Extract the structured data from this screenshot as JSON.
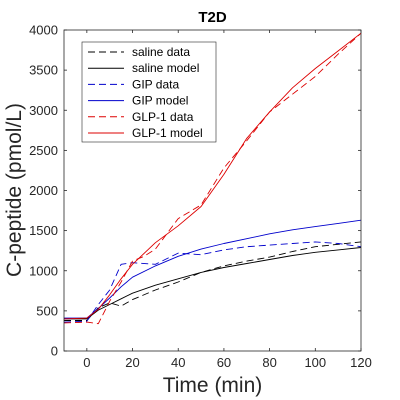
{
  "chart_data": {
    "type": "line",
    "title": "T2D",
    "xlabel": "Time (min)",
    "ylabel": "C-peptide (pmol/L)",
    "xlim": [
      -10,
      120
    ],
    "ylim": [
      0,
      4000
    ],
    "xticks": [
      0,
      20,
      40,
      60,
      80,
      100,
      120
    ],
    "yticks": [
      0,
      500,
      1000,
      1500,
      2000,
      2500,
      3000,
      3500,
      4000
    ],
    "grid": false,
    "legend_position": "top-left",
    "series": [
      {
        "name": "saline data",
        "color": "#000000",
        "style": "dashed",
        "x": [
          -10,
          0,
          5,
          10,
          15,
          20,
          30,
          40,
          50,
          60,
          70,
          80,
          90,
          100,
          110,
          120
        ],
        "y": [
          380,
          380,
          540,
          600,
          560,
          640,
          760,
          860,
          980,
          1060,
          1120,
          1170,
          1240,
          1300,
          1330,
          1360
        ]
      },
      {
        "name": "saline model",
        "color": "#000000",
        "style": "solid",
        "x": [
          -10,
          0,
          5,
          10,
          15,
          20,
          30,
          40,
          50,
          60,
          70,
          80,
          90,
          100,
          110,
          120
        ],
        "y": [
          400,
          400,
          510,
          580,
          650,
          720,
          820,
          900,
          980,
          1040,
          1090,
          1140,
          1190,
          1230,
          1260,
          1290
        ]
      },
      {
        "name": "GIP data",
        "color": "#0000cc",
        "style": "dashed",
        "x": [
          -10,
          0,
          5,
          10,
          15,
          20,
          30,
          40,
          50,
          60,
          70,
          80,
          90,
          100,
          110,
          120
        ],
        "y": [
          360,
          370,
          580,
          760,
          1080,
          1100,
          1080,
          1220,
          1200,
          1260,
          1300,
          1320,
          1340,
          1360,
          1340,
          1300
        ]
      },
      {
        "name": "GIP model",
        "color": "#0000cc",
        "style": "solid",
        "x": [
          -10,
          0,
          5,
          10,
          15,
          20,
          30,
          40,
          50,
          60,
          70,
          80,
          90,
          100,
          110,
          120
        ],
        "y": [
          410,
          410,
          530,
          660,
          800,
          920,
          1060,
          1180,
          1270,
          1340,
          1400,
          1460,
          1510,
          1550,
          1590,
          1630
        ]
      },
      {
        "name": "GLP-1 data",
        "color": "#dd0000",
        "style": "dashed",
        "x": [
          -10,
          0,
          5,
          10,
          15,
          20,
          25,
          30,
          40,
          50,
          60,
          70,
          80,
          90,
          100,
          110,
          120
        ],
        "y": [
          350,
          360,
          340,
          620,
          860,
          1120,
          1180,
          1270,
          1650,
          1820,
          2280,
          2620,
          2980,
          3200,
          3420,
          3700,
          3960
        ]
      },
      {
        "name": "GLP-1 model",
        "color": "#dd0000",
        "style": "solid",
        "x": [
          -10,
          0,
          5,
          10,
          15,
          20,
          30,
          40,
          50,
          60,
          70,
          80,
          90,
          100,
          110,
          120
        ],
        "y": [
          400,
          410,
          520,
          700,
          900,
          1080,
          1350,
          1560,
          1800,
          2200,
          2650,
          2980,
          3280,
          3520,
          3740,
          3960
        ]
      }
    ]
  }
}
